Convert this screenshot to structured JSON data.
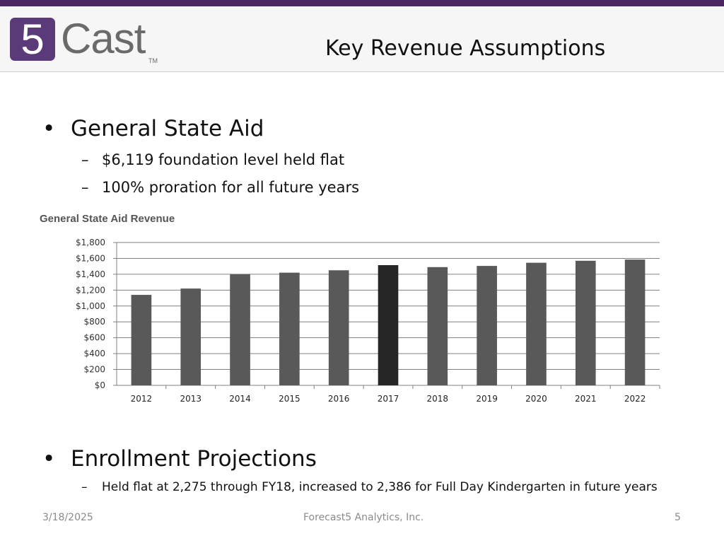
{
  "header": {
    "logo_box_glyph": "5",
    "logo_word": "Cast",
    "logo_tm": "TM",
    "title": "Key Revenue Assumptions"
  },
  "colors": {
    "top_bar": "#4b2561",
    "logo_box": "#5b3a7a",
    "bar_default": "#595959",
    "bar_highlight": "#262626",
    "gridline": "#808080"
  },
  "section1": {
    "bullet": "•",
    "heading": "General State Aid",
    "dash": "–",
    "subitems": [
      "$6,119 foundation level held flat",
      "100% proration for all future years"
    ]
  },
  "chart_data": {
    "type": "bar",
    "title": "General State Aid Revenue",
    "xlabel": "",
    "ylabel": "",
    "categories": [
      "2012",
      "2013",
      "2014",
      "2015",
      "2016",
      "2017",
      "2018",
      "2019",
      "2020",
      "2021",
      "2022"
    ],
    "values": [
      1140,
      1220,
      1400,
      1420,
      1450,
      1515,
      1490,
      1505,
      1545,
      1570,
      1585
    ],
    "highlight_category": "2017",
    "ylim": [
      0,
      1800
    ],
    "yticks": [
      0,
      200,
      400,
      600,
      800,
      1000,
      1200,
      1400,
      1600,
      1800
    ],
    "ytick_labels": [
      "$0",
      "$200",
      "$400",
      "$600",
      "$800",
      "$1,000",
      "$1,200",
      "$1,400",
      "$1,600",
      "$1,800"
    ],
    "grid": true,
    "legend": "none"
  },
  "section2": {
    "bullet": "•",
    "heading": "Enrollment Projections",
    "dash": "–",
    "subitems": [
      "Held flat at 2,275 through FY18, increased to 2,386 for Full Day Kindergarten in future years"
    ]
  },
  "footer": {
    "date": "3/18/2025",
    "company": "Forecast5 Analytics, Inc.",
    "page": "5"
  }
}
